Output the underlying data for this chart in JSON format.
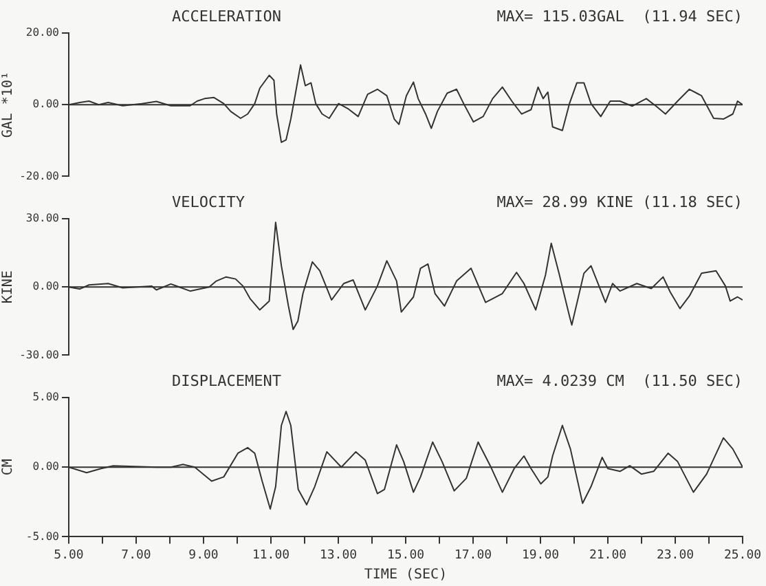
{
  "chart_data": [
    {
      "type": "line",
      "title": "ACCELERATION",
      "annotations": [
        "MAX= 115.03GAL  (11.94 SEC)"
      ],
      "ylabel": "GAL *10¹",
      "color": "#333333",
      "marker": "none",
      "tick_labels": "y",
      "xlim": [
        5,
        25
      ],
      "ylim": [
        -20,
        20
      ],
      "yticks": [
        {
          "value": -20,
          "label": "-20.00"
        },
        {
          "value": 0,
          "label": "0.00"
        },
        {
          "value": 20,
          "label": "20.00"
        }
      ],
      "ref_lines": [
        {
          "axis": "y",
          "value": 0
        }
      ],
      "x": [
        5.0,
        5.33,
        5.6,
        5.89,
        6.17,
        6.6,
        7.17,
        7.6,
        8.03,
        8.6,
        8.81,
        9.03,
        9.31,
        9.6,
        9.81,
        10.1,
        10.31,
        10.52,
        10.67,
        10.95,
        11.09,
        11.17,
        11.31,
        11.45,
        11.59,
        11.73,
        11.88,
        12.02,
        12.19,
        12.33,
        12.52,
        12.73,
        13.01,
        13.3,
        13.59,
        13.87,
        14.16,
        14.44,
        14.66,
        14.8,
        15.02,
        15.23,
        15.37,
        15.59,
        15.76,
        15.94,
        16.23,
        16.51,
        16.72,
        17.01,
        17.3,
        17.58,
        17.87,
        18.15,
        18.44,
        18.72,
        18.93,
        19.08,
        19.22,
        19.36,
        19.65,
        19.86,
        20.08,
        20.29,
        20.5,
        20.79,
        21.07,
        21.36,
        21.72,
        22.14,
        22.43,
        22.71,
        23.07,
        23.42,
        23.78,
        24.14,
        24.43,
        24.71,
        24.85,
        25.0
      ],
      "values": [
        0,
        0.6,
        1.0,
        0,
        0.6,
        -0.3,
        0.3,
        0.9,
        -0.3,
        -0.3,
        1.0,
        1.7,
        2.0,
        0.3,
        -1.9,
        -3.8,
        -2.6,
        0.3,
        4.6,
        8.2,
        6.8,
        -2.6,
        -10.5,
        -9.8,
        -4.0,
        3.2,
        11.1,
        5.3,
        6.1,
        0.3,
        -2.6,
        -3.8,
        0.3,
        -1.2,
        -3.3,
        2.9,
        4.3,
        2.5,
        -4.0,
        -5.5,
        2.5,
        6.3,
        1.7,
        -2.6,
        -6.6,
        -1.9,
        3.2,
        4.3,
        0.3,
        -4.8,
        -3.3,
        1.7,
        4.9,
        1.0,
        -2.6,
        -1.4,
        4.9,
        1.7,
        3.5,
        -6.2,
        -7.2,
        0.3,
        6.1,
        6.1,
        0.3,
        -3.3,
        1.0,
        1.0,
        -0.4,
        1.7,
        -0.4,
        -2.6,
        1.0,
        4.3,
        2.5,
        -3.8,
        -4.0,
        -2.6,
        1.0,
        0
      ]
    },
    {
      "type": "line",
      "title": "VELOCITY",
      "annotations": [
        "MAX= 28.99 KINE (11.18 SEC)"
      ],
      "ylabel": "KINE",
      "color": "#333333",
      "marker": "none",
      "tick_labels": "y",
      "xlim": [
        5,
        25
      ],
      "ylim": [
        -30,
        30
      ],
      "yticks": [
        {
          "value": -30,
          "label": "-30.00"
        },
        {
          "value": 0,
          "label": "0.00"
        },
        {
          "value": 30,
          "label": "30.00"
        }
      ],
      "ref_lines": [
        {
          "axis": "y",
          "value": 0
        }
      ],
      "x": [
        5.0,
        5.33,
        5.6,
        6.17,
        6.6,
        7.46,
        7.6,
        8.03,
        8.6,
        9.17,
        9.38,
        9.67,
        9.95,
        10.17,
        10.38,
        10.67,
        10.95,
        11.14,
        11.31,
        11.52,
        11.66,
        11.8,
        11.95,
        12.23,
        12.45,
        12.8,
        13.16,
        13.44,
        13.8,
        14.16,
        14.44,
        14.73,
        14.87,
        15.23,
        15.44,
        15.66,
        15.87,
        16.15,
        16.51,
        16.94,
        17.37,
        17.87,
        18.29,
        18.51,
        18.86,
        19.15,
        19.32,
        19.55,
        19.86,
        19.93,
        20.29,
        20.5,
        20.93,
        21.14,
        21.36,
        21.86,
        22.29,
        22.64,
        22.85,
        23.14,
        23.42,
        23.78,
        24.21,
        24.49,
        24.63,
        24.85,
        25.0
      ],
      "values": [
        0,
        -0.9,
        0.9,
        1.5,
        -0.4,
        0.4,
        -1.3,
        1.3,
        -1.8,
        0,
        2.6,
        4.4,
        3.5,
        0.4,
        -5.1,
        -10.1,
        -6.2,
        28.4,
        9.3,
        -8.4,
        -18.7,
        -15.0,
        -2.9,
        11.0,
        7.1,
        -5.7,
        1.5,
        3.1,
        -10.1,
        0.4,
        11.5,
        2.6,
        -11.0,
        -4.4,
        8.2,
        10.1,
        -2.9,
        -8.4,
        2.6,
        8.2,
        -6.8,
        -2.9,
        6.4,
        1.5,
        -10.1,
        5.3,
        19.2,
        6.0,
        -12.8,
        -16.7,
        6.0,
        9.3,
        -6.8,
        1.5,
        -1.8,
        1.5,
        -0.7,
        4.4,
        -2.2,
        -9.5,
        -4.0,
        6.0,
        7.1,
        0.4,
        -6.2,
        -4.4,
        -5.7
      ]
    },
    {
      "type": "line",
      "title": "DISPLACEMENT",
      "annotations": [
        "MAX= 4.0239 CM  (11.50 SEC)"
      ],
      "ylabel": "CM",
      "xlabel": "TIME (SEC)",
      "color": "#333333",
      "marker": "none",
      "xlim": [
        5,
        25
      ],
      "xticks": [
        {
          "value": 5,
          "label": "5.00"
        },
        {
          "value": 6,
          "label": null
        },
        {
          "value": 7,
          "label": "7.00"
        },
        {
          "value": 8,
          "label": null
        },
        {
          "value": 9,
          "label": "9.00"
        },
        {
          "value": 10,
          "label": null
        },
        {
          "value": 11,
          "label": "11.00"
        },
        {
          "value": 12,
          "label": null
        },
        {
          "value": 13,
          "label": "13.00"
        },
        {
          "value": 14,
          "label": null
        },
        {
          "value": 15,
          "label": "15.00"
        },
        {
          "value": 16,
          "label": null
        },
        {
          "value": 17,
          "label": "17.00"
        },
        {
          "value": 18,
          "label": null
        },
        {
          "value": 19,
          "label": "19.00"
        },
        {
          "value": 20,
          "label": null
        },
        {
          "value": 21,
          "label": "21.00"
        },
        {
          "value": 22,
          "label": null
        },
        {
          "value": 23,
          "label": "23.00"
        },
        {
          "value": 24,
          "label": null
        },
        {
          "value": 25,
          "label": "25.00"
        }
      ],
      "ylim": [
        -5,
        5
      ],
      "yticks": [
        {
          "value": -5,
          "label": "-5.00"
        },
        {
          "value": 0,
          "label": "0.00"
        },
        {
          "value": 5,
          "label": "5.00"
        }
      ],
      "ref_lines": [
        {
          "axis": "y",
          "value": 0
        }
      ],
      "x": [
        5.0,
        5.53,
        5.96,
        6.32,
        7.6,
        8.03,
        8.39,
        8.74,
        9.24,
        9.6,
        10.02,
        10.31,
        10.52,
        10.74,
        10.98,
        11.14,
        11.31,
        11.45,
        11.59,
        11.81,
        12.06,
        12.3,
        12.66,
        13.09,
        13.52,
        13.8,
        14.16,
        14.37,
        14.73,
        14.94,
        15.23,
        15.44,
        15.8,
        16.08,
        16.44,
        16.8,
        17.15,
        17.51,
        17.87,
        18.22,
        18.51,
        18.72,
        19.01,
        19.22,
        19.36,
        19.65,
        19.89,
        20.25,
        20.5,
        20.83,
        21.0,
        21.36,
        21.65,
        22.0,
        22.36,
        22.79,
        23.07,
        23.54,
        23.93,
        24.43,
        24.71,
        25.0
      ],
      "values": [
        0,
        -0.4,
        -0.1,
        0.1,
        0,
        0,
        0.2,
        0,
        -1.0,
        -0.7,
        1.0,
        1.4,
        1.0,
        -1.0,
        -3.0,
        -1.4,
        3.0,
        4.0,
        3.0,
        -1.6,
        -2.7,
        -1.4,
        1.1,
        0,
        1.1,
        0.5,
        -1.9,
        -1.6,
        1.6,
        0.4,
        -1.8,
        -0.7,
        1.8,
        0.4,
        -1.7,
        -0.8,
        1.8,
        0.1,
        -1.8,
        -0.1,
        0.8,
        -0.1,
        -1.2,
        -0.7,
        0.8,
        3.0,
        1.3,
        -2.6,
        -1.4,
        0.7,
        -0.1,
        -0.3,
        0.1,
        -0.5,
        -0.3,
        1.0,
        0.4,
        -1.8,
        -0.5,
        2.1,
        1.3,
        0
      ]
    }
  ]
}
